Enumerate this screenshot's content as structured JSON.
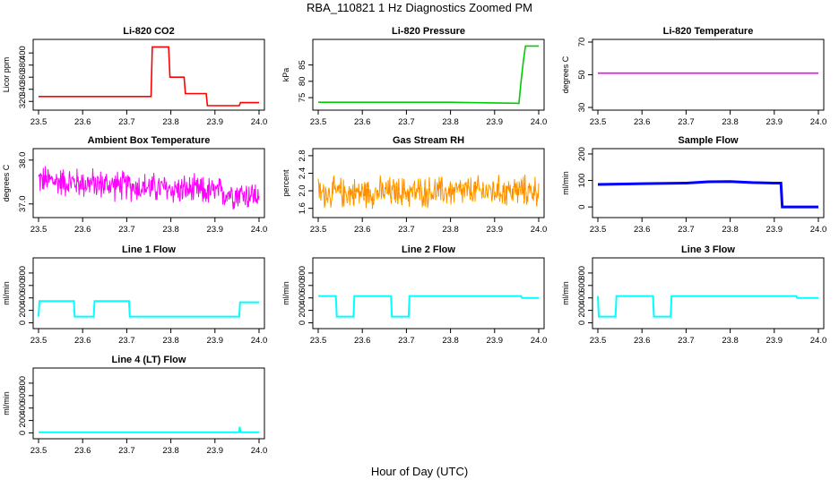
{
  "figure": {
    "title": "RBA_110821  1 Hz Diagnostics Zoomed PM",
    "xlabel": "Hour of Day (UTC)"
  },
  "colors": {
    "red": "#ff0000",
    "green": "#00cc00",
    "magenta": "#ff00ff",
    "orange": "#ff8c00",
    "yellow": "#ffd700",
    "blue": "#0000ff",
    "cyan": "#00ffff",
    "axis": "#000000"
  },
  "chart_data": [
    {
      "id": "co2",
      "type": "line",
      "title": "Li-820 CO2",
      "xlabel": "",
      "ylabel": "Licor ppm",
      "xlim": [
        23.5,
        24.0
      ],
      "ylim": [
        310,
        418
      ],
      "xticks": [
        23.5,
        23.6,
        23.7,
        23.8,
        23.9,
        24.0
      ],
      "xtick_labels": [
        "23.5",
        "23.6",
        "23.7",
        "23.8",
        "23.9",
        "24.0"
      ],
      "yticks": [
        320,
        340,
        360,
        380,
        400
      ],
      "ytick_labels": [
        "320",
        "340",
        "360",
        "380",
        "400"
      ],
      "grid": false,
      "color": "#ff0000",
      "series": [
        {
          "x": [
            23.5,
            23.7,
            23.71,
            23.755,
            23.758,
            23.795,
            23.798,
            23.83,
            23.833,
            23.88,
            23.883,
            23.955,
            23.958,
            23.962,
            23.965,
            24.0
          ],
          "y": [
            328,
            328,
            328,
            328,
            410,
            410,
            360,
            360,
            333,
            333,
            313,
            313,
            318,
            318,
            318,
            318
          ]
        }
      ]
    },
    {
      "id": "pressure",
      "type": "line",
      "title": "Li-820 Pressure",
      "xlabel": "",
      "ylabel": "kPa",
      "xlim": [
        23.5,
        24.0
      ],
      "ylim": [
        72,
        92
      ],
      "xticks": [
        23.5,
        23.6,
        23.7,
        23.8,
        23.9,
        24.0
      ],
      "xtick_labels": [
        "23.5",
        "23.6",
        "23.7",
        "23.8",
        "23.9",
        "24.0"
      ],
      "yticks": [
        75,
        80,
        85
      ],
      "ytick_labels": [
        "75",
        "80",
        "85"
      ],
      "grid": false,
      "color": "#00cc00",
      "series": [
        {
          "x": [
            23.5,
            23.8,
            23.95,
            23.955,
            23.96,
            23.965,
            23.97,
            24.0
          ],
          "y": [
            73.6,
            73.6,
            73.3,
            73.2,
            80.0,
            86.0,
            90.8,
            90.8
          ]
        }
      ]
    },
    {
      "id": "temp",
      "type": "line",
      "title": "Li-820 Temperature",
      "xlabel": "",
      "ylabel": "degrees C",
      "xlim": [
        23.5,
        24.0
      ],
      "ylim": [
        30,
        70
      ],
      "xticks": [
        23.5,
        23.6,
        23.7,
        23.8,
        23.9,
        24.0
      ],
      "xtick_labels": [
        "23.5",
        "23.6",
        "23.7",
        "23.8",
        "23.9",
        "24.0"
      ],
      "yticks": [
        30,
        50,
        70
      ],
      "ytick_labels": [
        "30",
        "50",
        "70"
      ],
      "grid": false,
      "color": "#ff00ff",
      "series": [
        {
          "x": [
            23.5,
            24.0
          ],
          "y": [
            51,
            51
          ]
        }
      ]
    },
    {
      "id": "boxtemp",
      "type": "line",
      "title": "Ambient Box Temperature",
      "xlabel": "",
      "ylabel": "degrees C",
      "xlim": [
        23.5,
        24.0
      ],
      "ylim": [
        36.75,
        38.2
      ],
      "xticks": [
        23.5,
        23.6,
        23.7,
        23.8,
        23.9,
        24.0
      ],
      "xtick_labels": [
        "23.5",
        "23.6",
        "23.7",
        "23.8",
        "23.9",
        "24.0"
      ],
      "yticks": [
        37.0,
        38.0
      ],
      "ytick_labels": [
        "37.0",
        "38.0"
      ],
      "grid": false,
      "color": "#ff00ff",
      "noise": {
        "mean_start": 37.55,
        "mean_end": 37.2,
        "spread": 0.35
      }
    },
    {
      "id": "rh",
      "type": "line",
      "title": "Gas Stream RH",
      "xlabel": "",
      "ylabel": "percent",
      "xlim": [
        23.5,
        24.0
      ],
      "ylim": [
        1.45,
        2.9
      ],
      "xticks": [
        23.5,
        23.6,
        23.7,
        23.8,
        23.9,
        24.0
      ],
      "xtick_labels": [
        "23.5",
        "23.6",
        "23.7",
        "23.8",
        "23.9",
        "24.0"
      ],
      "yticks": [
        1.6,
        2.0,
        2.4,
        2.8
      ],
      "ytick_labels": [
        "1.6",
        "2.0",
        "2.4",
        "2.8"
      ],
      "grid": false,
      "color": "#ff8c00",
      "point_color": "#ffd700",
      "noise": {
        "mean_start": 1.95,
        "mean_end": 2.0,
        "spread": 0.35
      }
    },
    {
      "id": "sampleflow",
      "type": "line",
      "title": "Sample Flow",
      "xlabel": "",
      "ylabel": "ml/min",
      "xlim": [
        23.5,
        24.0
      ],
      "ylim": [
        -30,
        210
      ],
      "xticks": [
        23.5,
        23.6,
        23.7,
        23.8,
        23.9,
        24.0
      ],
      "xtick_labels": [
        "23.5",
        "23.6",
        "23.7",
        "23.8",
        "23.9",
        "24.0"
      ],
      "yticks": [
        0,
        100,
        200
      ],
      "ytick_labels": [
        "0",
        "100",
        "200"
      ],
      "grid": false,
      "color": "#0000ff",
      "series": [
        {
          "x": [
            23.5,
            23.6,
            23.7,
            23.75,
            23.8,
            23.85,
            23.9,
            23.915,
            23.918,
            24.0
          ],
          "y": [
            85,
            88,
            90,
            95,
            96,
            92,
            90,
            90,
            0,
            0
          ]
        }
      ]
    },
    {
      "id": "line1",
      "type": "line",
      "title": "Line 1 Flow",
      "xlabel": "",
      "ylabel": "ml/min",
      "xlim": [
        23.5,
        24.0
      ],
      "ylim": [
        -50,
        1000
      ],
      "xticks": [
        23.5,
        23.6,
        23.7,
        23.8,
        23.9,
        24.0
      ],
      "xtick_labels": [
        "23.5",
        "23.6",
        "23.7",
        "23.8",
        "23.9",
        "24.0"
      ],
      "yticks": [
        0,
        200,
        400,
        600,
        800
      ],
      "ytick_labels": [
        "0",
        "200",
        "400",
        "600",
        "800"
      ],
      "grid": false,
      "color": "#00ffff",
      "series": [
        {
          "x": [
            23.5,
            23.502,
            23.58,
            23.582,
            23.625,
            23.627,
            23.705,
            23.707,
            23.955,
            23.957,
            24.0
          ],
          "y": [
            100,
            350,
            350,
            100,
            100,
            350,
            350,
            100,
            100,
            330,
            330
          ]
        }
      ]
    },
    {
      "id": "line2",
      "type": "line",
      "title": "Line 2 Flow",
      "xlabel": "",
      "ylabel": "ml/min",
      "xlim": [
        23.5,
        24.0
      ],
      "ylim": [
        -50,
        1000
      ],
      "xticks": [
        23.5,
        23.6,
        23.7,
        23.8,
        23.9,
        24.0
      ],
      "xtick_labels": [
        "23.5",
        "23.6",
        "23.7",
        "23.8",
        "23.9",
        "24.0"
      ],
      "yticks": [
        0,
        200,
        400,
        600,
        800
      ],
      "ytick_labels": [
        "0",
        "200",
        "400",
        "600",
        "800"
      ],
      "grid": false,
      "color": "#00ffff",
      "series": [
        {
          "x": [
            23.5,
            23.54,
            23.542,
            23.58,
            23.582,
            23.665,
            23.667,
            23.705,
            23.707,
            23.96,
            23.962,
            24.0
          ],
          "y": [
            430,
            430,
            100,
            100,
            430,
            430,
            100,
            100,
            430,
            430,
            400,
            400
          ]
        }
      ]
    },
    {
      "id": "line3",
      "type": "line",
      "title": "Line 3 Flow",
      "xlabel": "",
      "ylabel": "ml/min",
      "xlim": [
        23.5,
        24.0
      ],
      "ylim": [
        -50,
        1000
      ],
      "xticks": [
        23.5,
        23.6,
        23.7,
        23.8,
        23.9,
        24.0
      ],
      "xtick_labels": [
        "23.5",
        "23.6",
        "23.7",
        "23.8",
        "23.9",
        "24.0"
      ],
      "yticks": [
        0,
        200,
        400,
        600,
        800
      ],
      "ytick_labels": [
        "0",
        "200",
        "400",
        "600",
        "800"
      ],
      "grid": false,
      "color": "#00ffff",
      "series": [
        {
          "x": [
            23.5,
            23.502,
            23.54,
            23.542,
            23.625,
            23.627,
            23.665,
            23.667,
            23.95,
            23.952,
            24.0
          ],
          "y": [
            430,
            100,
            100,
            430,
            430,
            100,
            100,
            430,
            430,
            400,
            400
          ]
        }
      ]
    },
    {
      "id": "line4",
      "type": "line",
      "title": "Line 4 (LT) Flow",
      "xlabel": "",
      "ylabel": "ml/min",
      "xlim": [
        23.5,
        24.0
      ],
      "ylim": [
        -50,
        1000
      ],
      "xticks": [
        23.5,
        23.6,
        23.7,
        23.8,
        23.9,
        24.0
      ],
      "xtick_labels": [
        "23.5",
        "23.6",
        "23.7",
        "23.8",
        "23.9",
        "24.0"
      ],
      "yticks": [
        0,
        200,
        400,
        600,
        800
      ],
      "ytick_labels": [
        "0",
        "200",
        "400",
        "600",
        "800"
      ],
      "grid": false,
      "color": "#00ffff",
      "series": [
        {
          "x": [
            23.5,
            23.955,
            23.956,
            23.958,
            23.96,
            24.0
          ],
          "y": [
            12,
            12,
            100,
            12,
            12,
            12
          ]
        }
      ]
    }
  ]
}
